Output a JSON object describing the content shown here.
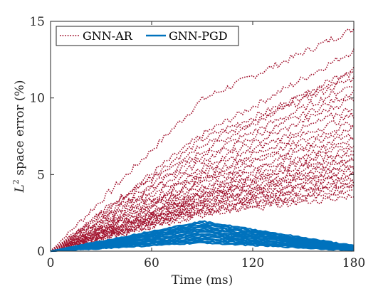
{
  "chart_data": {
    "type": "line",
    "xlabel": "Time (ms)",
    "ylabel_main": "L",
    "ylabel_sup": "2",
    "ylabel_rest": " space error (%)",
    "x_ticks": [
      "0",
      "60",
      "120",
      "180"
    ],
    "y_ticks": [
      "0",
      "5",
      "10",
      "15"
    ],
    "xlim": [
      0,
      180
    ],
    "ylim": [
      0,
      15
    ],
    "grid": false,
    "legend_position": "top-left",
    "colors": {
      "ar": "#a2142f",
      "pgd": "#0072bd",
      "axis": "#262626"
    },
    "series": [
      {
        "name": "GNN-AR",
        "style": "dotted",
        "color": "#a2142f",
        "peak_x": 90,
        "final_values": [
          14.5,
          13.1,
          12.0,
          11.6,
          11.3,
          10.9,
          10.4,
          10.0,
          9.4,
          8.9,
          8.4,
          8.0,
          7.6,
          7.3,
          7.0,
          6.7,
          6.4,
          6.1,
          5.9,
          5.7,
          5.5,
          5.3,
          5.1,
          4.9,
          4.7,
          4.5,
          4.3,
          4.1,
          3.9,
          3.6
        ],
        "peak_values": [
          9.9,
          7.6,
          6.5,
          7.3,
          7.0,
          6.2,
          5.9,
          5.5,
          5.2,
          5.0,
          4.8,
          4.6,
          4.4,
          4.2,
          4.0,
          3.8,
          3.7,
          3.6,
          3.5,
          3.4,
          3.3,
          3.2,
          3.1,
          3.0,
          2.9,
          2.8,
          2.7,
          2.6,
          2.5,
          2.4
        ]
      },
      {
        "name": "GNN-PGD",
        "style": "solid",
        "color": "#0072bd",
        "peak_x": 90,
        "peak_values": [
          1.95,
          1.85,
          1.75,
          1.65,
          1.55,
          1.45,
          1.35,
          1.25,
          1.15,
          1.05,
          0.95,
          0.85,
          0.75,
          0.65,
          0.55
        ],
        "final_values": [
          0.35,
          0.3,
          0.28,
          0.25,
          0.22,
          0.2,
          0.18,
          0.16,
          0.14,
          0.12,
          0.1,
          0.09,
          0.08,
          0.06,
          0.05
        ]
      }
    ]
  }
}
